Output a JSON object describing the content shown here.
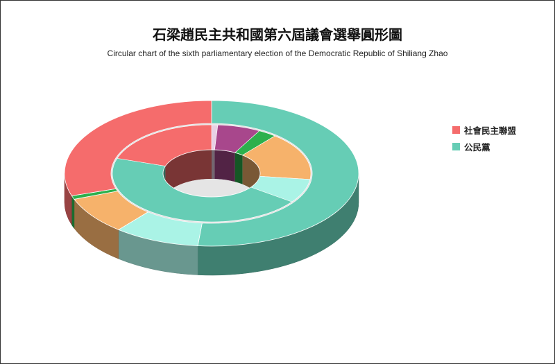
{
  "title": "石梁趙民主共和國第六屆議會選舉圓形圖",
  "subtitle": "Circular chart of the sixth parliamentary election of the Democratic Republic of Shiliang Zhao",
  "chart_data": {
    "type": "pie",
    "style": "3d-donut-nested",
    "legend_position": "right",
    "legend": [
      {
        "name": "社會民主聯盟",
        "color": "#F56C6C"
      },
      {
        "name": "公民黨",
        "color": "#66CDB5"
      }
    ],
    "outer_ring": [
      {
        "name": "公民黨",
        "value": 51.5,
        "color": "#66CDB5"
      },
      {
        "name": "",
        "value": 9.4,
        "color": "#AAF3E6"
      },
      {
        "name": "",
        "value": 8.3,
        "color": "#F6B26B"
      },
      {
        "name": "",
        "value": 0.8,
        "color": "#2CB04C"
      },
      {
        "name": "社會民主聯盟",
        "value": 30.0,
        "color": "#F56C6C"
      }
    ],
    "inner_ring": [
      {
        "name": "",
        "value": 1.0,
        "color": "#E8D0E4"
      },
      {
        "name": "",
        "value": 7.0,
        "color": "#A8478C"
      },
      {
        "name": "",
        "value": 3.0,
        "color": "#2CB04C"
      },
      {
        "name": "",
        "value": 16.0,
        "color": "#F6B26B"
      },
      {
        "name": "",
        "value": 8.0,
        "color": "#AAF3E6"
      },
      {
        "name": "",
        "value": 45.0,
        "color": "#66CDB5"
      },
      {
        "name": "",
        "value": 20.0,
        "color": "#F56C6C"
      }
    ]
  }
}
